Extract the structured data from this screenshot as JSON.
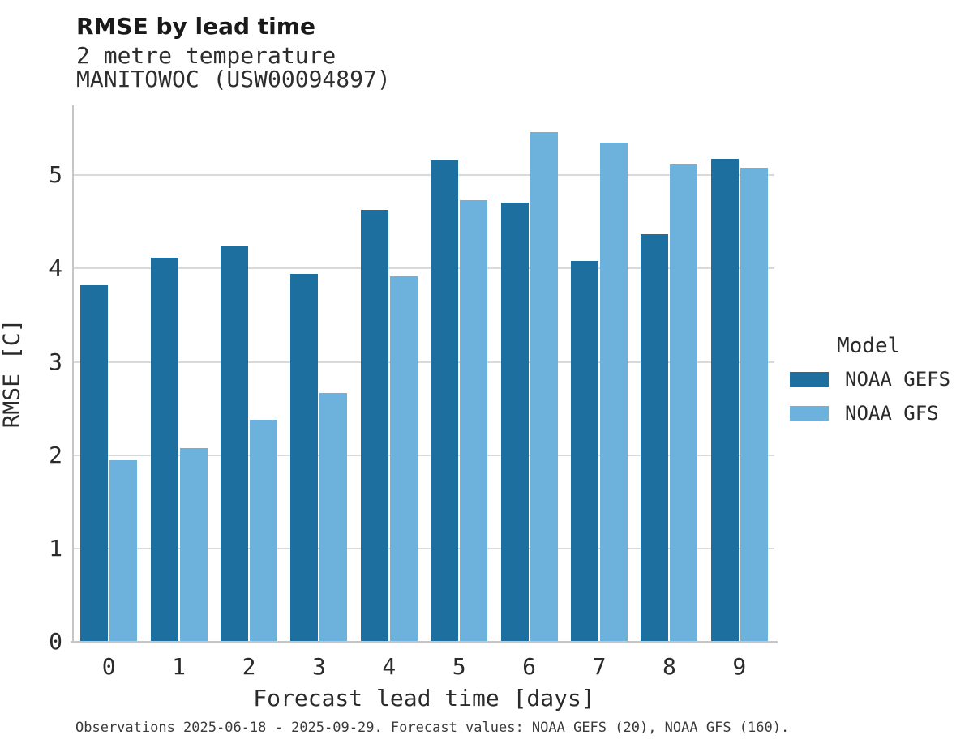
{
  "header": {
    "title": "RMSE by lead time",
    "subtitle_line1": "2 metre temperature",
    "subtitle_line2": "MANITOWOC (USW00094897)"
  },
  "chart_data": {
    "type": "bar",
    "title": "RMSE by lead time",
    "subtitle": [
      "2 metre temperature",
      "MANITOWOC (USW00094897)"
    ],
    "categories": [
      "0",
      "1",
      "2",
      "3",
      "4",
      "5",
      "6",
      "7",
      "8",
      "9"
    ],
    "series": [
      {
        "name": "NOAA GEFS",
        "color": "#1d6f9f",
        "values": [
          3.82,
          4.12,
          4.24,
          3.94,
          4.63,
          5.16,
          4.71,
          4.08,
          4.37,
          5.18
        ]
      },
      {
        "name": "NOAA GFS",
        "color": "#6cb2dc",
        "values": [
          1.95,
          2.08,
          2.38,
          2.67,
          3.92,
          4.73,
          5.46,
          5.35,
          5.12,
          5.08
        ]
      }
    ],
    "xlabel": "Forecast lead time [days]",
    "ylabel": "RMSE [C]",
    "ylim": [
      0,
      5.75
    ],
    "yticks": [
      0,
      1,
      2,
      3,
      4,
      5
    ],
    "grid": "horizontal",
    "legend_title": "Model",
    "legend_position": "right"
  },
  "legend": {
    "title": "Model",
    "items": [
      {
        "label": "NOAA GEFS",
        "color": "#1d6f9f"
      },
      {
        "label": "NOAA GFS",
        "color": "#6cb2dc"
      }
    ]
  },
  "caption": "Observations 2025-06-18 - 2025-09-29. Forecast values: NOAA GEFS (20), NOAA GFS (160).",
  "colors": {
    "background": "#ffffff",
    "gridline": "#d9d9d9",
    "spine": "#c6c6c6",
    "text": "#2b2b2b"
  }
}
